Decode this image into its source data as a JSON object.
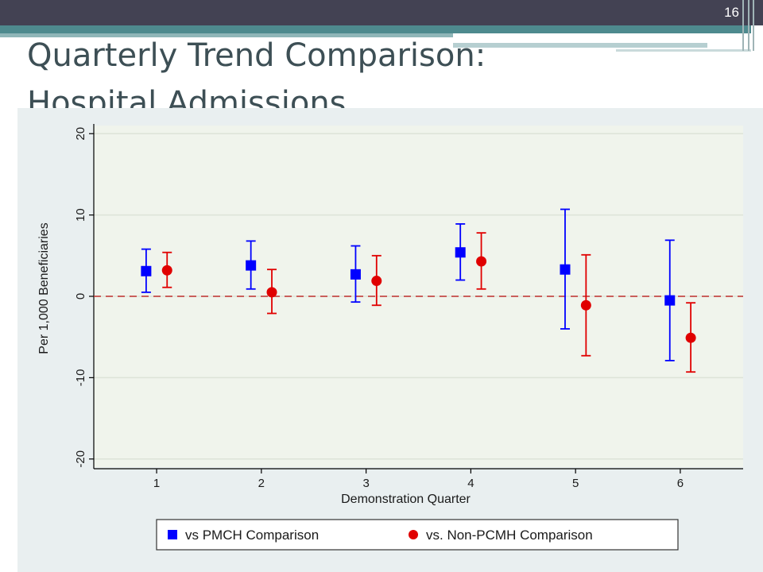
{
  "slide": {
    "number": "16",
    "title_line1": "Quarterly Trend Comparison:",
    "title_line2": "Hospital Admissions"
  },
  "chart_data": {
    "type": "scatter",
    "title": "Quarterly Trend Comparison: Hospital Admissions",
    "xlabel": "Demonstration Quarter",
    "ylabel": "Per 1,000 Beneficiaries",
    "categories": [
      "1",
      "2",
      "3",
      "4",
      "5",
      "6"
    ],
    "xlim": [
      0.4,
      6.6
    ],
    "ylim": [
      -21,
      21
    ],
    "yticks": [
      20,
      10,
      0,
      -10,
      -20
    ],
    "ytick_labels": [
      "20",
      "10",
      "0",
      "-10",
      "-20"
    ],
    "grid": true,
    "reference_line": 0,
    "legend_position": "bottom",
    "series": [
      {
        "name": "vs PMCH Comparison",
        "marker": "square",
        "color": "#0000ff",
        "offset": -0.1,
        "x": [
          1,
          2,
          3,
          4,
          5,
          6
        ],
        "y": [
          3.1,
          3.8,
          2.7,
          5.4,
          3.3,
          -0.5
        ],
        "lower": [
          0.5,
          0.9,
          -0.7,
          2.0,
          -4.0,
          -7.9
        ],
        "upper": [
          5.8,
          6.8,
          6.2,
          8.9,
          10.7,
          6.9
        ]
      },
      {
        "name": "vs. Non-PCMH Comparison",
        "marker": "circle",
        "color": "#e00000",
        "offset": 0.1,
        "x": [
          1,
          2,
          3,
          4,
          5,
          6
        ],
        "y": [
          3.2,
          0.5,
          1.9,
          4.3,
          -1.1,
          -5.1
        ],
        "lower": [
          1.1,
          -2.1,
          -1.1,
          0.9,
          -7.3,
          -9.3
        ],
        "upper": [
          5.4,
          3.3,
          5.0,
          7.8,
          5.1,
          -0.8
        ]
      }
    ],
    "colors": {
      "plot_bg": "#f0f4ec",
      "outer_bg": "#e9eff0",
      "grid": "#dde3d8",
      "axis": "#000000",
      "reference_line": "#c03030"
    }
  }
}
